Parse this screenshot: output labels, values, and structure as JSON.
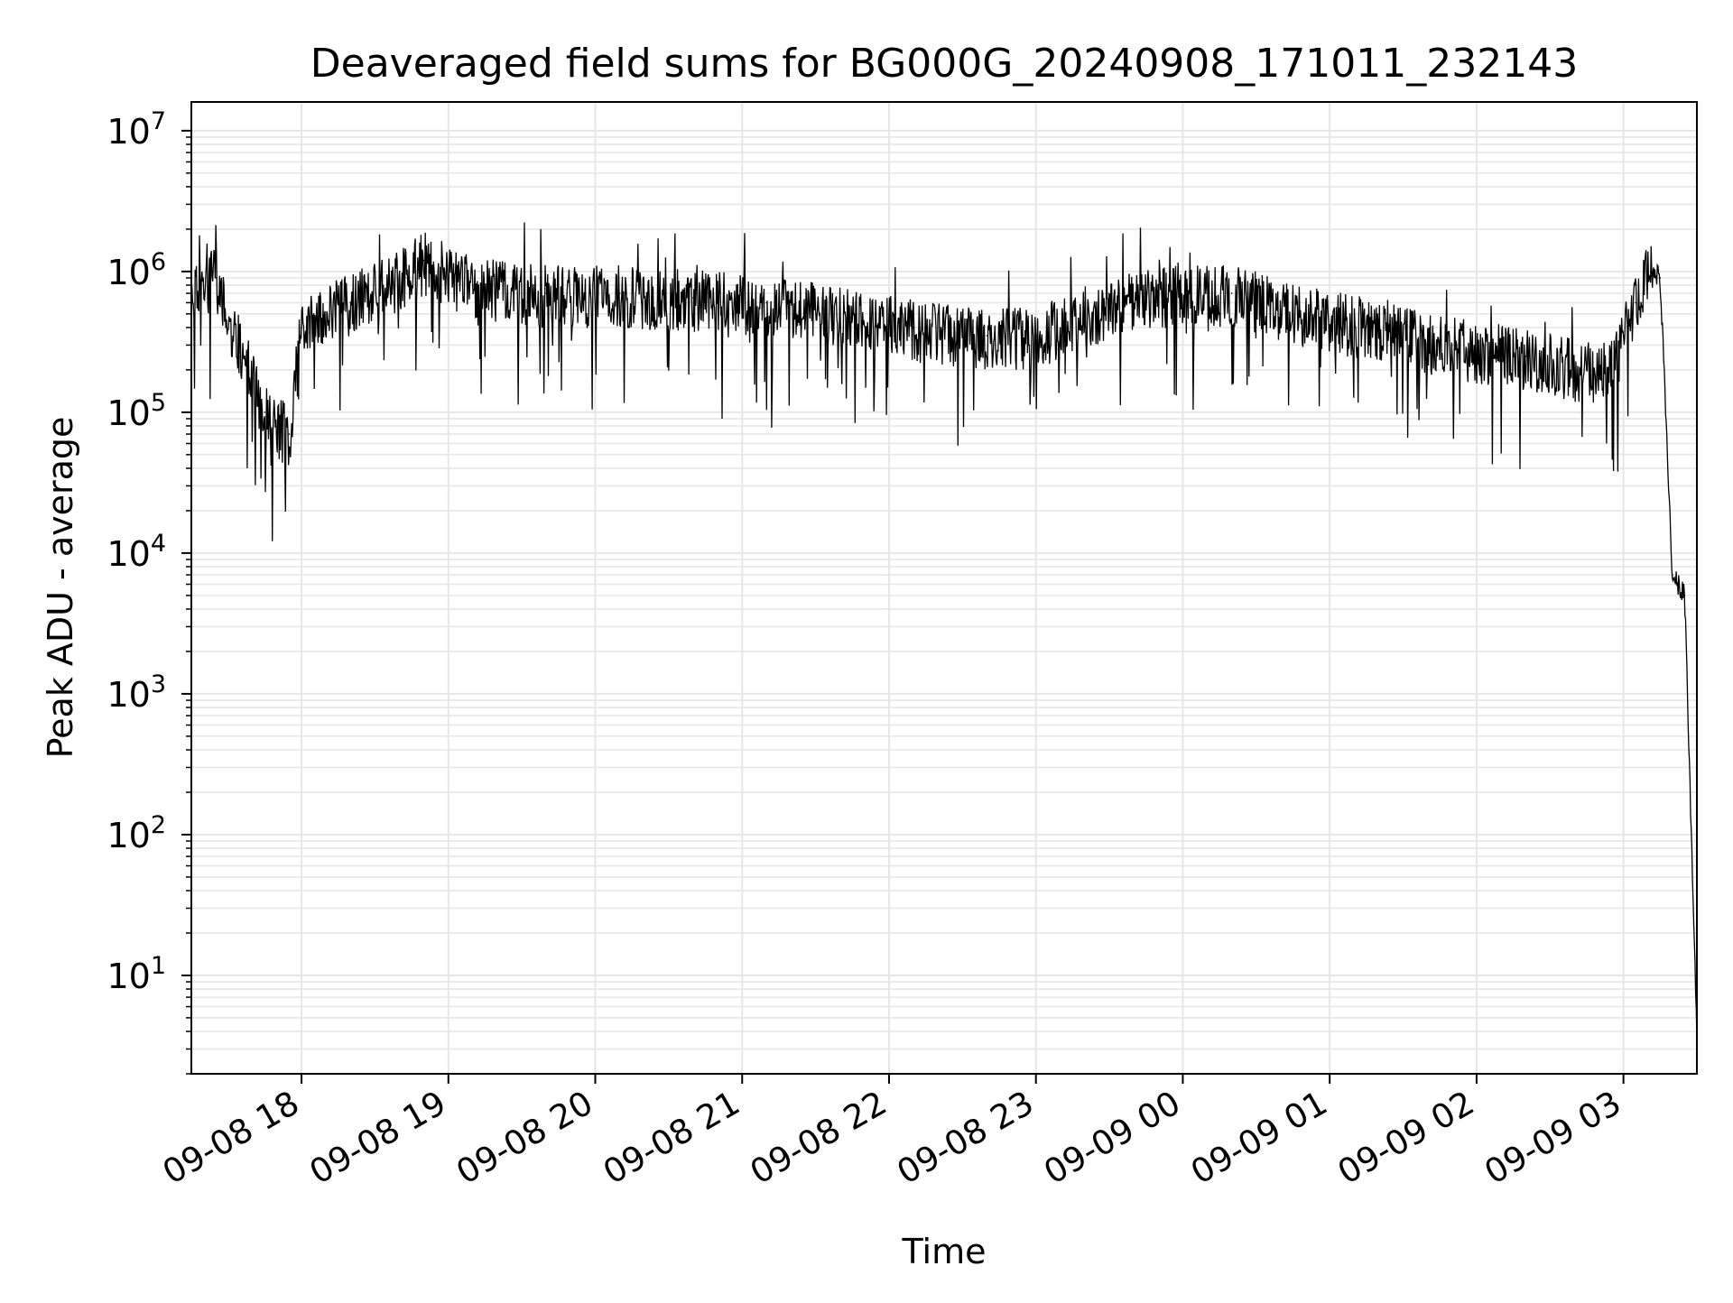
{
  "chart_data": {
    "type": "line",
    "title": "Deaveraged field sums for BG000G_20240908_171011_232143",
    "xlabel": "Time",
    "ylabel": "Peak ADU - average",
    "yscale": "log",
    "xlim": [
      "2024-09-08 17:15",
      "2024-09-09 03:30"
    ],
    "ylim": [
      2,
      16000000
    ],
    "x_tick_labels": [
      "09-08 18",
      "09-08 19",
      "09-08 20",
      "09-08 21",
      "09-08 22",
      "09-08 23",
      "09-09 00",
      "09-09 01",
      "09-09 02",
      "09-09 03"
    ],
    "x_tick_values": [
      "2024-09-08 18:00",
      "2024-09-08 19:00",
      "2024-09-08 20:00",
      "2024-09-08 21:00",
      "2024-09-08 22:00",
      "2024-09-08 23:00",
      "2024-09-09 00:00",
      "2024-09-09 01:00",
      "2024-09-09 02:00",
      "2024-09-09 03:00"
    ],
    "y_ticks": [
      {
        "value": 10,
        "base": "10",
        "exp": "1"
      },
      {
        "value": 100,
        "base": "10",
        "exp": "2"
      },
      {
        "value": 1000,
        "base": "10",
        "exp": "3"
      },
      {
        "value": 10000,
        "base": "10",
        "exp": "4"
      },
      {
        "value": 100000,
        "base": "10",
        "exp": "5"
      },
      {
        "value": 1000000,
        "base": "10",
        "exp": "6"
      },
      {
        "value": 10000000,
        "base": "10",
        "exp": "7"
      }
    ],
    "grid": true,
    "line_color": "#000000",
    "grid_color": "#e6e6e6",
    "series": [
      {
        "x": [
          "2024-09-08 17:15",
          "2024-09-08 17:25",
          "2024-09-08 17:35",
          "2024-09-08 17:45",
          "2024-09-08 17:55",
          "2024-09-08 18:00",
          "2024-09-08 18:05",
          "2024-09-08 18:20",
          "2024-09-08 18:40",
          "2024-09-08 18:50",
          "2024-09-08 19:10",
          "2024-09-08 19:40",
          "2024-09-08 20:10",
          "2024-09-08 20:40",
          "2024-09-08 21:10",
          "2024-09-08 21:40",
          "2024-09-08 22:10",
          "2024-09-08 22:40",
          "2024-09-08 23:00",
          "2024-09-08 23:20",
          "2024-09-08 23:50",
          "2024-09-09 00:20",
          "2024-09-09 00:50",
          "2024-09-09 01:20",
          "2024-09-09 01:50",
          "2024-09-09 02:20",
          "2024-09-09 02:45",
          "2024-09-09 02:55",
          "2024-09-09 03:05",
          "2024-09-09 03:10",
          "2024-09-09 03:15",
          "2024-09-09 03:20",
          "2024-09-09 03:25",
          "2024-09-09 03:30"
        ],
        "y": [
          800000,
          900000,
          300000,
          100000,
          70000,
          400000,
          500000,
          600000,
          900000,
          1200000,
          800000,
          700000,
          700000,
          650000,
          600000,
          500000,
          400000,
          350000,
          350000,
          500000,
          700000,
          700000,
          500000,
          400000,
          300000,
          250000,
          200000,
          200000,
          600000,
          1100000,
          900000,
          7000,
          5000,
          4
        ]
      }
    ]
  }
}
